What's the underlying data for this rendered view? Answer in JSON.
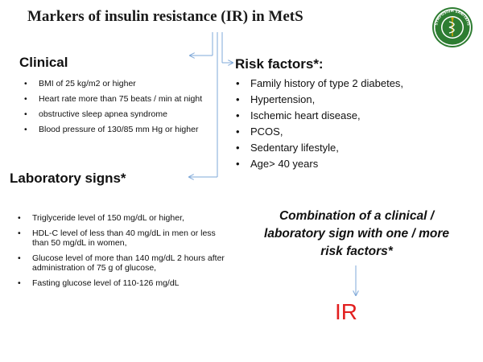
{
  "title": "Markers of insulin resistance (IR) in MetS",
  "logo": {
    "icon": "symposium-sanitatis-seal-icon",
    "ring_text": "SYMPOSIUM SANITATIS",
    "colors": {
      "green": "#2e7d32",
      "gold": "#c8a000"
    }
  },
  "clinical": {
    "heading": "Clinical",
    "items": [
      "BMI of 25 kg/m2 or higher",
      "Heart rate more than 75 beats / min at night",
      "obstructive sleep apnea syndrome",
      "Blood pressure of 130/85 mm Hg or higher"
    ]
  },
  "risk_factors": {
    "heading": "Risk factors*:",
    "items": [
      "Family history of type 2 diabetes,",
      "Hypertension,",
      "Ischemic heart disease,",
      "PCOS,",
      "Sedentary lifestyle,",
      "Age> 40 years"
    ]
  },
  "laboratory": {
    "heading": "Laboratory signs*",
    "items": [
      "Triglyceride level of 150 mg/dL or higher,",
      "HDL-C level of less than 40 mg/dL in men or less than 50 mg/dL in women,",
      "Glucose level of more than 140 mg/dL 2 hours after administration of 75 g of glucose,",
      "Fasting glucose level of 110-126 mg/dL"
    ]
  },
  "combination": "Combination of a clinical / laboratory sign with one / more risk factors*",
  "result": "IR",
  "colors": {
    "arrow": "#7fa8d8",
    "result": "#e21f1f"
  }
}
